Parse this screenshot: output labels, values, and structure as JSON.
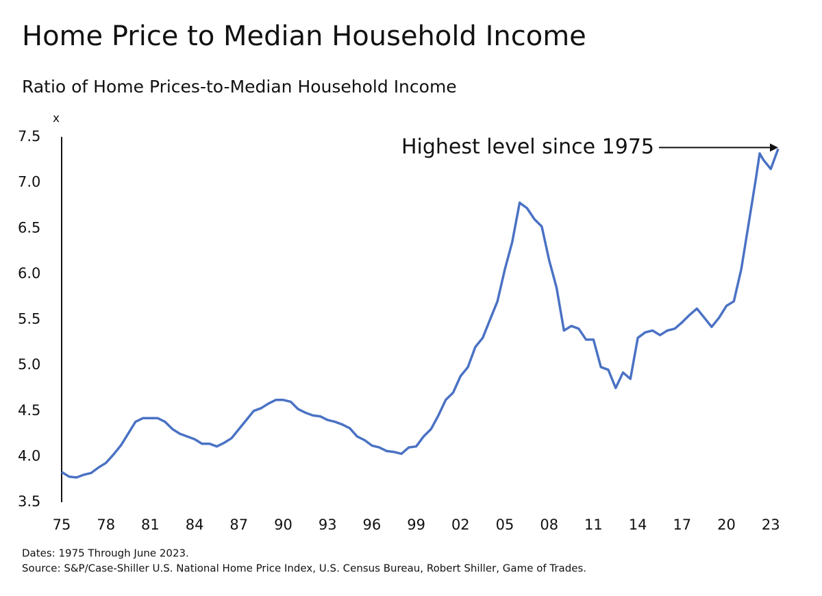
{
  "chart_data": {
    "type": "line",
    "title": "Home Price to Median Household Income",
    "subtitle": "Ratio of Home Prices-to-Median Household Income",
    "y_unit": "x",
    "annotation": "Highest level since 1975",
    "notes": [
      "Dates: 1975 Through June 2023.",
      "Source: S&P/Case-Shiller U.S. National Home Price Index, U.S. Census Bureau, Robert Shiller, Game of Trades."
    ],
    "x": [
      1975,
      1975.5,
      1976,
      1976.5,
      1977,
      1977.5,
      1978,
      1978.5,
      1979,
      1979.5,
      1980,
      1980.5,
      1981,
      1981.5,
      1982,
      1982.5,
      1983,
      1983.5,
      1984,
      1984.5,
      1985,
      1985.5,
      1986,
      1986.5,
      1987,
      1987.5,
      1988,
      1988.5,
      1989,
      1989.5,
      1990,
      1990.5,
      1991,
      1991.5,
      1992,
      1992.5,
      1993,
      1993.5,
      1994,
      1994.5,
      1995,
      1995.5,
      1996,
      1996.5,
      1997,
      1997.5,
      1998,
      1998.5,
      1999,
      1999.5,
      2000,
      2000.5,
      2001,
      2001.5,
      2002,
      2002.5,
      2003,
      2003.5,
      2004,
      2004.5,
      2005,
      2005.5,
      2006,
      2006.5,
      2007,
      2007.5,
      2008,
      2008.5,
      2009,
      2009.5,
      2010,
      2010.5,
      2011,
      2011.5,
      2012,
      2012.5,
      2013,
      2013.5,
      2014,
      2014.5,
      2015,
      2015.5,
      2016,
      2016.5,
      2017,
      2017.5,
      2018,
      2018.5,
      2019,
      2019.5,
      2020,
      2020.5,
      2021,
      2021.5,
      2022,
      2022.25,
      2022.5,
      2023,
      2023.5
    ],
    "series": [
      {
        "name": "Ratio",
        "color": "#4a72c4",
        "values": [
          3.83,
          3.78,
          3.77,
          3.8,
          3.82,
          3.88,
          3.93,
          4.02,
          4.12,
          4.25,
          4.38,
          4.42,
          4.42,
          4.42,
          4.38,
          4.3,
          4.25,
          4.22,
          4.19,
          4.14,
          4.14,
          4.11,
          4.15,
          4.2,
          4.3,
          4.4,
          4.5,
          4.53,
          4.58,
          4.62,
          4.62,
          4.6,
          4.52,
          4.48,
          4.45,
          4.44,
          4.4,
          4.38,
          4.35,
          4.31,
          4.22,
          4.18,
          4.12,
          4.1,
          4.06,
          4.05,
          4.03,
          4.1,
          4.11,
          4.22,
          4.3,
          4.45,
          4.62,
          4.7,
          4.88,
          4.98,
          5.2,
          5.3,
          5.5,
          5.7,
          6.05,
          6.35,
          6.78,
          6.72,
          6.6,
          6.52,
          6.15,
          5.85,
          5.38,
          5.43,
          5.4,
          5.28,
          5.28,
          4.98,
          4.95,
          4.75,
          4.92,
          4.85,
          5.3,
          5.36,
          5.38,
          5.33,
          5.38,
          5.4,
          5.47,
          5.55,
          5.62,
          5.52,
          5.42,
          5.52,
          5.65,
          5.7,
          6.05,
          6.55,
          7.05,
          7.32,
          7.25,
          7.15,
          7.37
        ]
      }
    ],
    "xlim": [
      1975,
      2023.5
    ],
    "xticks": [
      {
        "value": 1975,
        "label": "75"
      },
      {
        "value": 1978,
        "label": "78"
      },
      {
        "value": 1981,
        "label": "81"
      },
      {
        "value": 1984,
        "label": "84"
      },
      {
        "value": 1987,
        "label": "87"
      },
      {
        "value": 1990,
        "label": "90"
      },
      {
        "value": 1993,
        "label": "93"
      },
      {
        "value": 1996,
        "label": "96"
      },
      {
        "value": 1999,
        "label": "99"
      },
      {
        "value": 2002,
        "label": "02"
      },
      {
        "value": 2005,
        "label": "05"
      },
      {
        "value": 2008,
        "label": "08"
      },
      {
        "value": 2011,
        "label": "11"
      },
      {
        "value": 2014,
        "label": "14"
      },
      {
        "value": 2017,
        "label": "17"
      },
      {
        "value": 2020,
        "label": "20"
      },
      {
        "value": 2023,
        "label": "23"
      }
    ],
    "ylim": [
      3.5,
      7.5
    ],
    "yticks": [
      3.5,
      {
        "value": 4,
        "label": "4.0"
      },
      4.5,
      {
        "value": 5,
        "label": "5.0"
      },
      5.5,
      {
        "value": 6,
        "label": "6.0"
      },
      6.5,
      {
        "value": 7,
        "label": "7.0"
      },
      7.5
    ]
  }
}
